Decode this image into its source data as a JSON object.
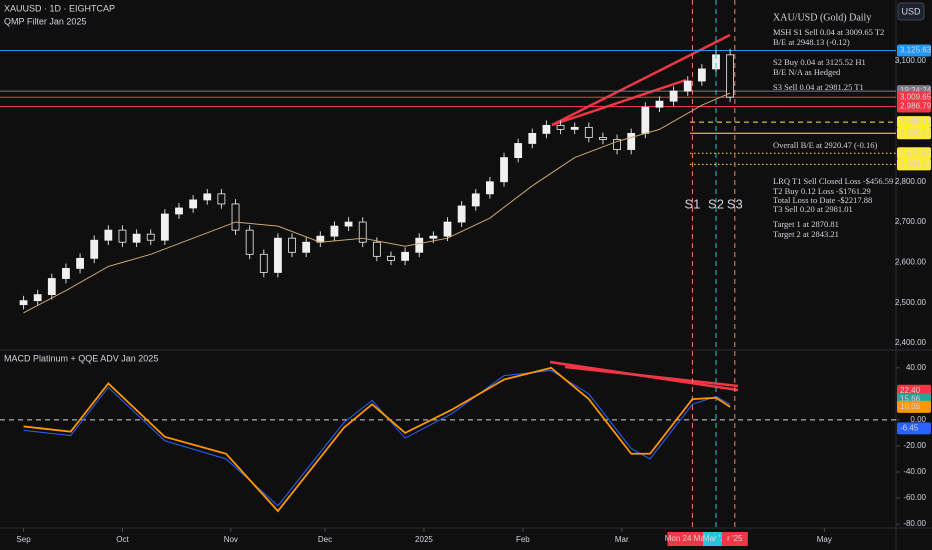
{
  "header": {
    "symbol": "XAUUSD · 1D · EIGHTCAP",
    "indicator": "QMP Filter Jan 2025",
    "currency": "USD"
  },
  "chart_data": [
    {
      "type": "candlestick",
      "title": "XAU/USD (Gold) Daily",
      "xlim": [
        -5,
        185
      ],
      "x": [
        0,
        3,
        6,
        9,
        12,
        15,
        18,
        21,
        24,
        27,
        30,
        33,
        36,
        39,
        42,
        45,
        48,
        51,
        54,
        57,
        60,
        63,
        66,
        69,
        72,
        75,
        78,
        81,
        84,
        87,
        90,
        93,
        96,
        99,
        102,
        105,
        108,
        111,
        114,
        117,
        120,
        123,
        126,
        129,
        132,
        135,
        138,
        141,
        144,
        147,
        150
      ],
      "open": [
        2495,
        2505,
        2520,
        2560,
        2585,
        2610,
        2655,
        2680,
        2650,
        2670,
        2655,
        2720,
        2735,
        2755,
        2770,
        2745,
        2680,
        2620,
        2575,
        2660,
        2625,
        2650,
        2665,
        2690,
        2700,
        2650,
        2615,
        2605,
        2625,
        2660,
        2665,
        2700,
        2740,
        2770,
        2800,
        2860,
        2895,
        2920,
        2940,
        2930,
        2935,
        2910,
        2905,
        2880,
        2920,
        2985,
        3000,
        3025,
        3050,
        3080,
        3115
      ],
      "high": [
        2517,
        2532,
        2572,
        2597,
        2622,
        2667,
        2692,
        2692,
        2682,
        2682,
        2732,
        2747,
        2767,
        2782,
        2782,
        2757,
        2692,
        2632,
        2672,
        2672,
        2662,
        2677,
        2702,
        2712,
        2712,
        2662,
        2627,
        2637,
        2672,
        2677,
        2712,
        2752,
        2782,
        2812,
        2872,
        2907,
        2932,
        2952,
        2952,
        2947,
        2947,
        2922,
        2917,
        2932,
        2997,
        3012,
        3037,
        3062,
        3092,
        3127,
        3130
      ],
      "low": [
        2483,
        2493,
        2508,
        2548,
        2573,
        2598,
        2643,
        2638,
        2638,
        2643,
        2643,
        2708,
        2723,
        2743,
        2733,
        2668,
        2608,
        2563,
        2563,
        2613,
        2613,
        2638,
        2653,
        2678,
        2638,
        2603,
        2593,
        2593,
        2613,
        2648,
        2653,
        2688,
        2728,
        2758,
        2788,
        2848,
        2883,
        2908,
        2918,
        2918,
        2898,
        2893,
        2868,
        2868,
        2908,
        2973,
        2988,
        3013,
        3038,
        3068,
        2998
      ],
      "close": [
        2505,
        2520,
        2560,
        2585,
        2610,
        2655,
        2680,
        2650,
        2670,
        2655,
        2720,
        2735,
        2755,
        2770,
        2745,
        2680,
        2620,
        2575,
        2660,
        2625,
        2650,
        2665,
        2690,
        2700,
        2650,
        2615,
        2605,
        2625,
        2660,
        2665,
        2700,
        2740,
        2770,
        2800,
        2860,
        2895,
        2920,
        2940,
        2930,
        2935,
        2910,
        2905,
        2880,
        2920,
        2985,
        3000,
        3025,
        3050,
        3080,
        3115,
        3010
      ],
      "ma": {
        "color": "#c9a96e",
        "x": [
          0,
          9,
          18,
          27,
          36,
          45,
          54,
          63,
          72,
          81,
          90,
          99,
          108,
          117,
          126,
          135,
          144,
          150
        ],
        "values": [
          2475,
          2530,
          2590,
          2620,
          2660,
          2700,
          2690,
          2650,
          2660,
          2640,
          2660,
          2710,
          2790,
          2860,
          2900,
          2930,
          2990,
          3020
        ]
      },
      "ylim": [
        2395,
        3251
      ],
      "yticks": [
        {
          "value": 3100,
          "label": "3,100.00"
        },
        {
          "value": 2800,
          "label": "2,800.00"
        },
        {
          "value": 2700,
          "label": "2,700.00"
        },
        {
          "value": 2600,
          "label": "2,600.00"
        },
        {
          "value": 2500,
          "label": "2,500.00"
        },
        {
          "value": 2400,
          "label": "2,400.00"
        }
      ],
      "levels": [
        {
          "value": 3125.63,
          "label": "3,125.63",
          "color": "#2196f3",
          "style": "solid"
        },
        {
          "value": 3025,
          "label": "19:24:24",
          "color": "#787b86",
          "style": "solid"
        },
        {
          "value": 3009.65,
          "label": "3,009.65",
          "color": "#f23645",
          "style": "solid"
        },
        {
          "value": 2986.79,
          "label": "2,986.79",
          "color": "#f23645",
          "style": "solid"
        },
        {
          "value": 2948.13,
          "label": "2,948.13",
          "color": "#ffeb3b",
          "style": "dashed"
        },
        {
          "value": 2920.47,
          "label": "2,920.47",
          "color": "#ffeb3b",
          "style": "solid"
        },
        {
          "value": 2870.81,
          "label": "2,870.81",
          "color": "#ffeb3b",
          "style": "dotted"
        },
        {
          "value": 2843.21,
          "label": "2,843.21",
          "color": "#ffeb3b",
          "style": "dotted"
        }
      ],
      "signals": [
        {
          "label": "S1",
          "x": 142,
          "color": "#f57c56",
          "date": "Mon 24 Mar '25"
        },
        {
          "label": "S2",
          "x": 147,
          "color": "#26c6da",
          "date": "Mar '25"
        },
        {
          "label": "S3",
          "x": 151,
          "color": "#f57c56",
          "date": "r '25"
        }
      ],
      "annotations": [
        "MSH S1 Sell 0.04 at 3009.65 T2",
        "B/E at 2948.13 (-0.12)",
        "S2 Buy 0.04 at 3125.52 H1",
        "B/E N/A as Hedged",
        "S3 Sell 0.04 at 2981.25 T1",
        "Overall B/E at 2920.47 (-0.16)",
        "LRQ T1 Sell Closed Loss -$456.59",
        "T2 Buy 0.12 Loss -$1761.29",
        "Total Loss to Date -$2217.88",
        "T3 Sell 0.20 at 2981.01",
        "Target 1 at 2870.81",
        "Target 2 at 2843.21"
      ]
    },
    {
      "type": "line",
      "title": "MACD Platinum + QQE ADV Jan 2025",
      "xlim": [
        -5,
        185
      ],
      "x": [
        0,
        10,
        18,
        30,
        43,
        54,
        68,
        74,
        81,
        91,
        102,
        112,
        120,
        129,
        133,
        142,
        147,
        150
      ],
      "series": [
        {
          "name": "MACD",
          "color": "#2962ff",
          "values": [
            -8,
            -12,
            25,
            -16,
            -30,
            -66,
            -2,
            15,
            -14,
            5,
            34,
            38,
            20,
            -22,
            -30,
            12,
            18,
            12
          ]
        },
        {
          "name": "Signal",
          "color": "#ff9800",
          "values": [
            -5,
            -9,
            28,
            -13,
            -26,
            -70,
            -6,
            12,
            -10,
            8,
            31,
            40,
            16,
            -26,
            -26,
            16,
            17,
            10
          ]
        }
      ],
      "ylim": [
        -83,
        53.7
      ],
      "yticks": [
        {
          "value": 40,
          "label": "40.00"
        },
        {
          "value": 0,
          "label": "0.00"
        },
        {
          "value": -20,
          "label": "-20.00"
        },
        {
          "value": -40,
          "label": "-40.00"
        },
        {
          "value": -60,
          "label": "-60.00"
        },
        {
          "value": -80,
          "label": "-80.00"
        }
      ],
      "levels": [
        {
          "value": 0,
          "color": "#d1d4dc",
          "style": "dashed"
        },
        {
          "value": 22.4,
          "label": "22.40",
          "color": "#f23645",
          "style": "none"
        },
        {
          "value": 15.66,
          "label": "15.66",
          "color": "#26a69a",
          "style": "none"
        },
        {
          "value": 10.05,
          "label": "10.05",
          "color": "#ff9800",
          "style": "none"
        },
        {
          "value": -6.45,
          "label": "-6.45",
          "color": "#2962ff",
          "style": "none"
        }
      ],
      "xticks": [
        {
          "value": 0,
          "label": "Sep"
        },
        {
          "value": 21,
          "label": "Oct"
        },
        {
          "value": 44,
          "label": "Nov"
        },
        {
          "value": 64,
          "label": "Dec"
        },
        {
          "value": 85,
          "label": "2025"
        },
        {
          "value": 106,
          "label": "Feb"
        },
        {
          "value": 127,
          "label": "Mar"
        },
        {
          "value": 170,
          "label": "May"
        }
      ]
    }
  ]
}
